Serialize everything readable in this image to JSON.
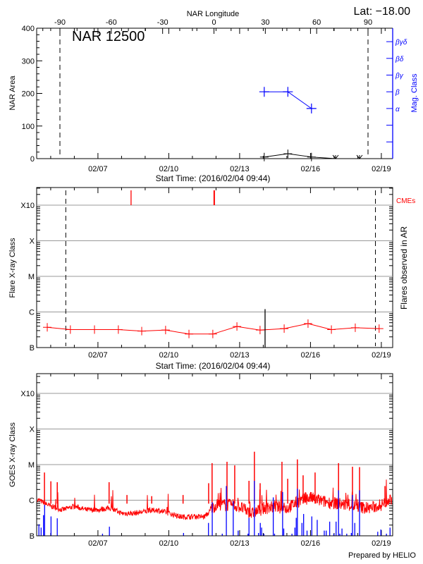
{
  "header": {
    "lat_label": "Lat: −18.00"
  },
  "footer": {
    "prepared_by": "Prepared by HELIO"
  },
  "colors": {
    "axis": "#000000",
    "mag": "#0000ff",
    "flare": "#ff0000",
    "cme": "#ff0000",
    "grid": "#999999",
    "goes_long": "#ff0000",
    "goes_short": "#0000ff"
  },
  "chart_data": [
    {
      "type": "line",
      "panel": "nar",
      "title": "NAR 12500",
      "top_xlabel": "NAR Longitude",
      "top_ticks": [
        "-90",
        "-60",
        "-30",
        "0",
        "30",
        "60",
        "90"
      ],
      "limb_longitudes": [
        -90,
        90
      ],
      "xlabel": "Start Time: (2016/02/04 09:44)",
      "x_ticks": [
        "02/07",
        "02/10",
        "02/13",
        "02/16",
        "02/19"
      ],
      "xlim": [
        "2016-02-04T09:44",
        "2016-02-19T11:30"
      ],
      "ylabel": "NAR Area",
      "y_ticks": [
        "0",
        "100",
        "200",
        "300",
        "400"
      ],
      "ylim": [
        0,
        400
      ],
      "y2label": "Mag. Class",
      "mag_classes": [
        "α",
        "β",
        "βγ",
        "βδ",
        "βγδ"
      ],
      "area": [
        {
          "t": "2016-02-14T01:00",
          "value": 5
        },
        {
          "t": "2016-02-15T01:00",
          "value": 15
        },
        {
          "t": "2016-02-16T01:00",
          "value": 5
        },
        {
          "t": "2016-02-17T01:30",
          "value": 0
        },
        {
          "t": "2016-02-18T01:50",
          "value": 0
        }
      ],
      "mag_class": [
        {
          "t": "2016-02-14T01:00",
          "value": "β"
        },
        {
          "t": "2016-02-15T01:00",
          "value": "β"
        },
        {
          "t": "2016-02-16T01:00",
          "value": "α"
        }
      ]
    },
    {
      "type": "line",
      "panel": "flares",
      "xlabel": "Start Time: (2016/02/04 09:44)",
      "x_ticks": [
        "02/07",
        "02/10",
        "02/13",
        "02/16",
        "02/19"
      ],
      "ylabel": "Flare X-ray Class",
      "y_ticks": [
        "B",
        "C",
        "M",
        "X",
        "X10"
      ],
      "y2label": "Flares observed in AR",
      "cme_label": "CMEs",
      "scale": "log",
      "ylim": [
        1e-07,
        0.003
      ],
      "limb_times": [
        "2016-02-05T15:20",
        "2016-02-18T18:00"
      ],
      "background": [
        {
          "t": "2016-02-04T20:30",
          "flux": 3.7e-07
        },
        {
          "t": "2016-02-05T20:00",
          "flux": 3.2e-07
        },
        {
          "t": "2016-02-06T20:30",
          "flux": 3.2e-07
        },
        {
          "t": "2016-02-07T20:45",
          "flux": 3.2e-07
        },
        {
          "t": "2016-02-08T20:30",
          "flux": 2.9e-07
        },
        {
          "t": "2016-02-09T20:45",
          "flux": 3.1e-07
        },
        {
          "t": "2016-02-10T20:30",
          "flux": 2.4e-07
        },
        {
          "t": "2016-02-11T20:45",
          "flux": 2.4e-07
        },
        {
          "t": "2016-02-12T21:15",
          "flux": 3.9e-07
        },
        {
          "t": "2016-02-13T20:45",
          "flux": 3.1e-07
        },
        {
          "t": "2016-02-14T21:15",
          "flux": 3.4e-07
        },
        {
          "t": "2016-02-15T21:30",
          "flux": 4.7e-07
        },
        {
          "t": "2016-02-16T21:15",
          "flux": 3.2e-07
        },
        {
          "t": "2016-02-17T21:30",
          "flux": 3.6e-07
        },
        {
          "t": "2016-02-18T21:45",
          "flux": 3.4e-07
        }
      ],
      "flares": [
        {
          "t": "2016-02-14T01:50",
          "flux": 1.2e-06
        }
      ],
      "cmes": [
        "2016-02-08T09:40",
        "2016-02-11T22:10"
      ]
    },
    {
      "type": "line",
      "panel": "goes",
      "ylabel": "GOES X-ray Class",
      "x_ticks": [
        "02/07",
        "02/10",
        "02/13",
        "02/16",
        "02/19"
      ],
      "y_ticks": [
        "B",
        "C",
        "M",
        "X",
        "X10"
      ],
      "scale": "log",
      "ylim": [
        1e-07,
        0.0035
      ],
      "long_channel_baseline": [
        [
          "2016-02-04T09:44",
          1e-06
        ],
        [
          "2016-02-05T00:00",
          6.3e-07
        ],
        [
          "2016-02-05T12:00",
          5e-07
        ],
        [
          "2016-02-06T00:00",
          6.3e-07
        ],
        [
          "2016-02-06T12:00",
          5e-07
        ],
        [
          "2016-02-07T00:00",
          5e-07
        ],
        [
          "2016-02-07T12:00",
          5.6e-07
        ],
        [
          "2016-02-08T00:00",
          4e-07
        ],
        [
          "2016-02-08T12:00",
          4e-07
        ],
        [
          "2016-02-09T00:00",
          4.5e-07
        ],
        [
          "2016-02-09T12:00",
          5e-07
        ],
        [
          "2016-02-10T00:00",
          4e-07
        ],
        [
          "2016-02-10T12:00",
          3.2e-07
        ],
        [
          "2016-02-11T00:00",
          3.2e-07
        ],
        [
          "2016-02-11T12:00",
          3.2e-07
        ],
        [
          "2016-02-12T00:00",
          6.3e-07
        ],
        [
          "2016-02-12T12:00",
          6.3e-07
        ],
        [
          "2016-02-13T00:00",
          5.6e-07
        ],
        [
          "2016-02-13T12:00",
          3.5e-07
        ],
        [
          "2016-02-14T00:00",
          5e-07
        ],
        [
          "2016-02-14T12:00",
          5.6e-07
        ],
        [
          "2016-02-15T00:00",
          5e-07
        ],
        [
          "2016-02-15T12:00",
          7.9e-07
        ],
        [
          "2016-02-16T00:00",
          1e-06
        ],
        [
          "2016-02-16T12:00",
          7.9e-07
        ],
        [
          "2016-02-17T00:00",
          7.1e-07
        ],
        [
          "2016-02-17T12:00",
          6.3e-07
        ],
        [
          "2016-02-18T00:00",
          5.6e-07
        ],
        [
          "2016-02-18T12:00",
          5e-07
        ],
        [
          "2016-02-19T00:00",
          6.3e-07
        ],
        [
          "2016-02-19T11:30",
          1e-06
        ]
      ],
      "long_channel_peaks": [
        [
          "2016-02-04T17:40",
          6e-06
        ],
        [
          "2016-02-05T00:10",
          3.4e-06
        ],
        [
          "2016-02-05T06:40",
          3.2e-06
        ],
        [
          "2016-02-07T11:20",
          3.2e-06
        ],
        [
          "2016-02-08T05:30",
          1.4e-06
        ],
        [
          "2016-02-09T06:40",
          1.3e-06
        ],
        [
          "2016-02-10T14:30",
          1.4e-06
        ],
        [
          "2016-02-11T16:30",
          3e-06
        ],
        [
          "2016-02-11T20:00",
          1.1e-05
        ],
        [
          "2016-02-12T11:10",
          1.2e-05
        ],
        [
          "2016-02-12T19:00",
          9.5e-06
        ],
        [
          "2016-02-13T09:30",
          3.5e-06
        ],
        [
          "2016-02-13T15:00",
          2.3e-05
        ],
        [
          "2016-02-13T20:50",
          3e-06
        ],
        [
          "2016-02-14T19:00",
          1.2e-05
        ],
        [
          "2016-02-15T00:50",
          4e-06
        ],
        [
          "2016-02-15T10:40",
          1.4e-05
        ],
        [
          "2016-02-15T16:30",
          5e-06
        ],
        [
          "2016-02-16T04:40",
          6e-06
        ],
        [
          "2016-02-17T04:30",
          1.1e-05
        ],
        [
          "2016-02-17T18:40",
          8.7e-06
        ],
        [
          "2016-02-18T01:50",
          8.5e-06
        ],
        [
          "2016-02-19T03:40",
          2.5e-06
        ]
      ],
      "short_channel": [
        [
          "2016-02-04T12:00",
          2.1e-07
        ],
        [
          "2016-02-04T14:15",
          1.7e-07
        ],
        [
          "2016-02-04T16:40",
          3.8e-07
        ],
        [
          "2016-02-04T17:50",
          7.4e-07
        ],
        [
          "2016-02-05T00:20",
          3.5e-07
        ],
        [
          "2016-02-05T06:40",
          3.1e-07
        ],
        [
          "2016-02-07T04:40",
          1.1e-07
        ],
        [
          "2016-02-07T11:40",
          1.8e-07
        ],
        [
          "2016-02-10T15:00",
          1.2e-07
        ],
        [
          "2016-02-11T16:20",
          2.3e-07
        ],
        [
          "2016-02-11T20:10",
          8.7e-07
        ],
        [
          "2016-02-12T06:20",
          1.1e-07
        ],
        [
          "2016-02-12T10:30",
          2.5e-06
        ],
        [
          "2016-02-12T17:30",
          9.3e-07
        ],
        [
          "2016-02-12T22:30",
          1.4e-07
        ],
        [
          "2016-02-13T08:30",
          1e-07
        ],
        [
          "2016-02-13T09:30",
          3.2e-07
        ],
        [
          "2016-02-13T15:00",
          3.5e-06
        ],
        [
          "2016-02-13T19:10",
          1.2e-07
        ],
        [
          "2016-02-13T21:00",
          2.3e-07
        ],
        [
          "2016-02-13T22:20",
          1.7e-07
        ],
        [
          "2016-02-14T00:40",
          1e-07
        ],
        [
          "2016-02-14T10:10",
          1.2e-06
        ],
        [
          "2016-02-14T11:30",
          1e-07
        ],
        [
          "2016-02-14T19:40",
          1.7e-06
        ],
        [
          "2016-02-14T20:50",
          1.6e-07
        ],
        [
          "2016-02-15T05:10",
          1e-07
        ],
        [
          "2016-02-15T08:10",
          1.7e-07
        ],
        [
          "2016-02-15T09:30",
          3.2e-07
        ],
        [
          "2016-02-15T10:40",
          2.1e-06
        ],
        [
          "2016-02-15T15:20",
          2.3e-07
        ],
        [
          "2016-02-15T17:00",
          4.1e-07
        ],
        [
          "2016-02-15T20:30",
          1.4e-07
        ],
        [
          "2016-02-16T01:20",
          3.5e-07
        ],
        [
          "2016-02-16T06:50",
          2.8e-07
        ],
        [
          "2016-02-16T14:00",
          1.4e-07
        ],
        [
          "2016-02-16T16:00",
          1.4e-07
        ],
        [
          "2016-02-16T19:30",
          2.5e-07
        ],
        [
          "2016-02-16T23:40",
          1e-07
        ],
        [
          "2016-02-17T02:00",
          2.5e-07
        ],
        [
          "2016-02-17T04:30",
          1.9e-06
        ],
        [
          "2016-02-17T05:50",
          1.1e-07
        ],
        [
          "2016-02-17T08:00",
          1.6e-07
        ],
        [
          "2016-02-17T12:50",
          1e-07
        ],
        [
          "2016-02-17T17:30",
          1.2e-07
        ],
        [
          "2016-02-17T18:40",
          1.4e-06
        ],
        [
          "2016-02-17T21:00",
          2.3e-07
        ],
        [
          "2016-02-18T01:50",
          1.9e-06
        ],
        [
          "2016-02-18T20:20",
          1.3e-07
        ],
        [
          "2016-02-18T23:30",
          1.5e-07
        ],
        [
          "2016-02-19T05:10",
          1e-07
        ],
        [
          "2016-02-19T08:50",
          1.7e-07
        ]
      ]
    }
  ]
}
